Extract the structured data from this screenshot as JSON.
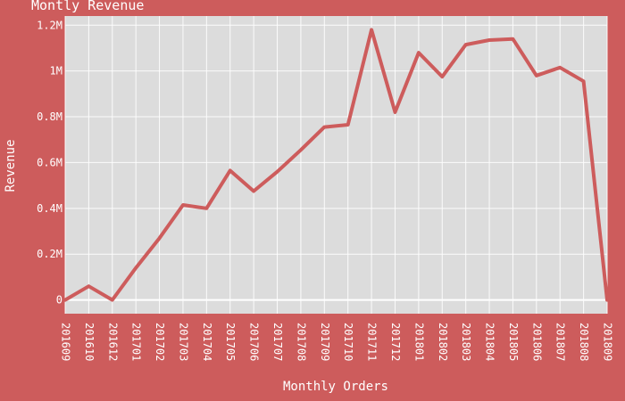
{
  "colors": {
    "background": "#cd5c5c",
    "plot_background": "#dcdcdc",
    "line": "#cd5c5c",
    "text": "#ffffff",
    "grid": "#ffffff"
  },
  "chart_data": {
    "type": "line",
    "title": "Montly Revenue",
    "xlabel": "Monthly Orders",
    "ylabel": "Revenue",
    "categories": [
      "201609",
      "201610",
      "201612",
      "201701",
      "201702",
      "201703",
      "201704",
      "201705",
      "201706",
      "201707",
      "201708",
      "201709",
      "201710",
      "201711",
      "201712",
      "201801",
      "201802",
      "201803",
      "201804",
      "201805",
      "201806",
      "201807",
      "201808",
      "201809"
    ],
    "values": [
      0,
      60000,
      0,
      140000,
      270000,
      415000,
      400000,
      565000,
      475000,
      560000,
      655000,
      755000,
      765000,
      1180000,
      820000,
      1080000,
      975000,
      1115000,
      1135000,
      1140000,
      980000,
      1015000,
      955000,
      0
    ],
    "ylim": [
      -60000,
      1240000
    ],
    "yticks": [
      0,
      200000,
      400000,
      600000,
      800000,
      1000000,
      1200000
    ],
    "ytick_labels": [
      "0",
      "0.2M",
      "0.4M",
      "0.6M",
      "0.8M",
      "1M",
      "1.2M"
    ],
    "grid": true,
    "legend": "none"
  }
}
